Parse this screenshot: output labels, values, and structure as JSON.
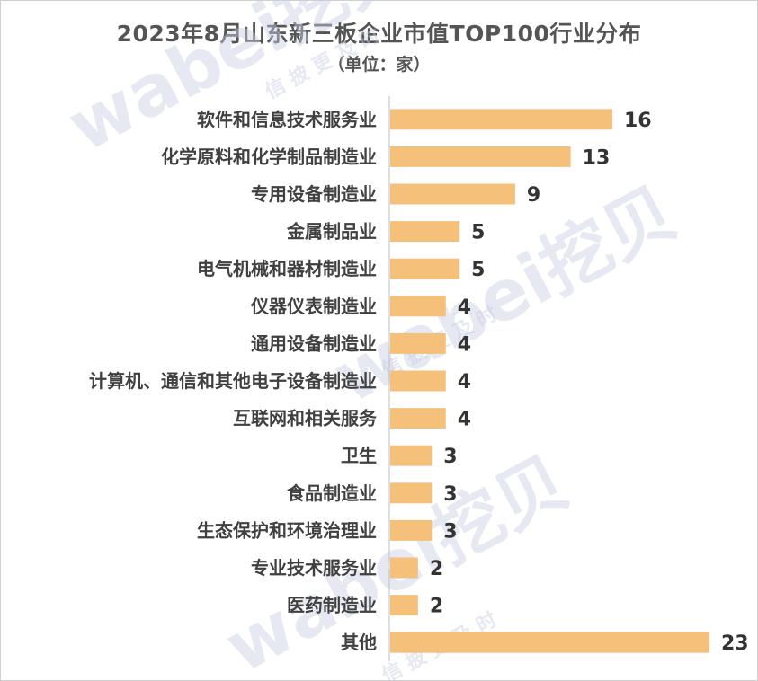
{
  "chart_data": {
    "type": "bar",
    "orientation": "horizontal",
    "title": "2023年8月山东新三板企业市值TOP100行业分布",
    "subtitle": "（单位：家）",
    "categories": [
      "软件和信息技术服务业",
      "化学原料和化学制品制造业",
      "专用设备制造业",
      "金属制品业",
      "电气机械和器材制造业",
      "仪器仪表制造业",
      "通用设备制造业",
      "计算机、通信和其他电子设备制造业",
      "互联网和相关服务",
      "卫生",
      "食品制造业",
      "生态保护和环境治理业",
      "专业技术服务业",
      "医药制造业",
      "其他"
    ],
    "values": [
      16,
      13,
      9,
      5,
      5,
      4,
      4,
      4,
      4,
      3,
      3,
      3,
      2,
      2,
      23
    ],
    "xlim": [
      0,
      23
    ],
    "grid": false,
    "legend": "none",
    "bar_color": "#f4c07a",
    "axis_color": "#bfbfbf"
  },
  "watermark": {
    "brand": "wabei挖贝",
    "slogan": "信 披 更 及 时"
  }
}
